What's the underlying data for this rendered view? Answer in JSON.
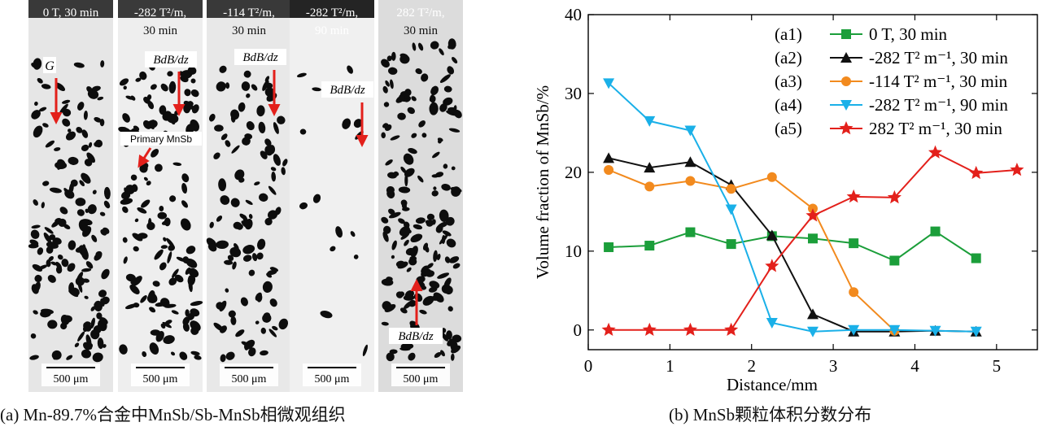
{
  "panel_a": {
    "caption": "(a) Mn-89.7%合金中MnSb/Sb-MnSb相微观组织",
    "strips": [
      {
        "label_top": "0 T, 30 min",
        "label_bottom": "",
        "scale": "500 μm",
        "tone": "#e6e6e6",
        "particle_density": 0.9
      },
      {
        "label_top": "-282 T²/m,",
        "label_bottom": "30 min",
        "scale": "500 μm",
        "tone": "#eeeeee",
        "particle_density": 0.85
      },
      {
        "label_top": "-114 T²/m,",
        "label_bottom": "30 min",
        "scale": "500 μm",
        "tone": "#e8e8e8",
        "particle_density": 0.6
      },
      {
        "label_top": "-282 T²/m,",
        "label_bottom": "90 min",
        "scale": "500 μm",
        "tone": "#f0f0f0",
        "particle_density": 0.1
      },
      {
        "label_top": "282 T²/m,",
        "label_bottom": "30 min",
        "scale": "500 μm",
        "tone": "#dcdcdc",
        "particle_density": 1.0
      }
    ],
    "annotations": {
      "g_label": "G",
      "bdb_label": "BdB/dz",
      "primary_label": "Primary MnSb"
    },
    "arrow_color": "#e3201b"
  },
  "panel_b": {
    "caption": "(b) MnSb颗粒体积分数分布"
  },
  "chart_data": {
    "type": "line",
    "title": "",
    "xlabel": "Distance/mm",
    "ylabel": "Volume fraction of MnSb/%",
    "xlim": [
      0,
      5.5
    ],
    "ylim": [
      -2.5,
      40
    ],
    "xticks": [
      0,
      1,
      2,
      3,
      4,
      5
    ],
    "yticks": [
      0,
      10,
      20,
      30,
      40
    ],
    "grid": false,
    "legend_position": "top-right",
    "series": [
      {
        "id": "a1",
        "tag": "(a1)",
        "name": "0 T, 30 min",
        "color": "#1b9e3a",
        "marker": "square",
        "x": [
          0.25,
          0.75,
          1.25,
          1.75,
          2.25,
          2.75,
          3.25,
          3.75,
          4.25,
          4.75
        ],
        "y": [
          10.5,
          10.7,
          12.4,
          10.9,
          11.9,
          11.6,
          11.0,
          8.8,
          12.5,
          9.1
        ]
      },
      {
        "id": "a2",
        "tag": "(a2)",
        "name": "-282 T² m⁻¹, 30 min",
        "color": "#111111",
        "marker": "triangle-up",
        "x": [
          0.25,
          0.75,
          1.25,
          1.75,
          2.25,
          2.75,
          3.25,
          3.75,
          4.25,
          4.75
        ],
        "y": [
          21.8,
          20.6,
          21.3,
          18.4,
          12.0,
          2.0,
          -0.2,
          -0.2,
          -0.1,
          -0.2
        ]
      },
      {
        "id": "a3",
        "tag": "(a3)",
        "name": "-114 T² m⁻¹, 30 min",
        "color": "#f28a1e",
        "marker": "circle",
        "x": [
          0.25,
          0.75,
          1.25,
          1.75,
          2.25,
          2.75,
          3.25,
          3.75
        ],
        "y": [
          20.3,
          18.2,
          18.9,
          17.9,
          19.4,
          15.4,
          4.8,
          -0.1
        ]
      },
      {
        "id": "a4",
        "tag": "(a4)",
        "name": "-282 T² m⁻¹, 90 min",
        "color": "#1ab0e8",
        "marker": "triangle-down",
        "x": [
          0.25,
          0.75,
          1.25,
          1.75,
          2.25,
          2.75,
          3.25,
          3.75,
          4.25,
          4.75
        ],
        "y": [
          31.3,
          26.5,
          25.3,
          15.3,
          0.9,
          -0.2,
          0.0,
          0.0,
          -0.1,
          -0.2
        ]
      },
      {
        "id": "a5",
        "tag": "(a5)",
        "name": "282 T² m⁻¹, 30 min",
        "color": "#e3201b",
        "marker": "star",
        "x": [
          0.25,
          0.75,
          1.25,
          1.75,
          2.25,
          2.75,
          3.25,
          3.75,
          4.25,
          4.75,
          5.25
        ],
        "y": [
          0.0,
          0.0,
          0.0,
          0.0,
          8.1,
          14.5,
          16.9,
          16.8,
          22.5,
          19.9,
          20.3
        ]
      }
    ]
  }
}
